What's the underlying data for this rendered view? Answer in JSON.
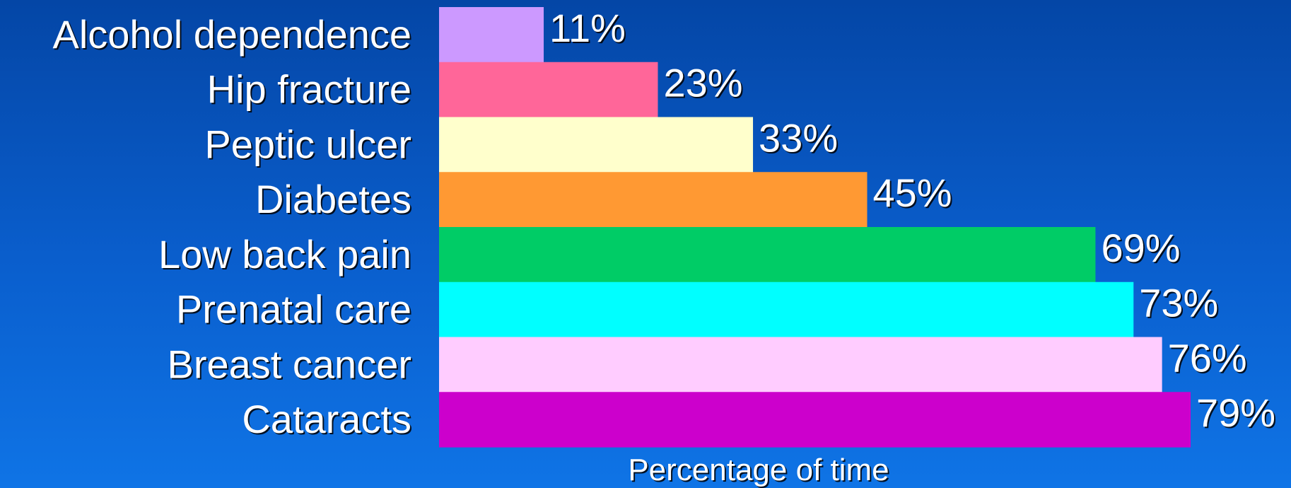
{
  "chart_data": {
    "type": "bar",
    "orientation": "horizontal",
    "categories": [
      "Alcohol dependence",
      "Hip fracture",
      "Peptic ulcer",
      "Diabetes",
      "Low back pain",
      "Prenatal care",
      "Breast cancer",
      "Cataracts"
    ],
    "values": [
      11,
      23,
      33,
      45,
      69,
      73,
      76,
      79
    ],
    "value_labels": [
      "11%",
      "23%",
      "33%",
      "45%",
      "69%",
      "73%",
      "76%",
      "79%"
    ],
    "colors": [
      "#cc99ff",
      "#ff6699",
      "#ffffcc",
      "#ff9933",
      "#00cc66",
      "#00ffff",
      "#ffccff",
      "#cc00cc"
    ],
    "xlabel": "Percentage of time",
    "xlim": [
      0,
      79
    ],
    "grid": false,
    "legend": "none"
  },
  "theme": {
    "background_top": "#0446a6",
    "background_bottom": "#0f74e6",
    "text_color": "#ffffff"
  }
}
